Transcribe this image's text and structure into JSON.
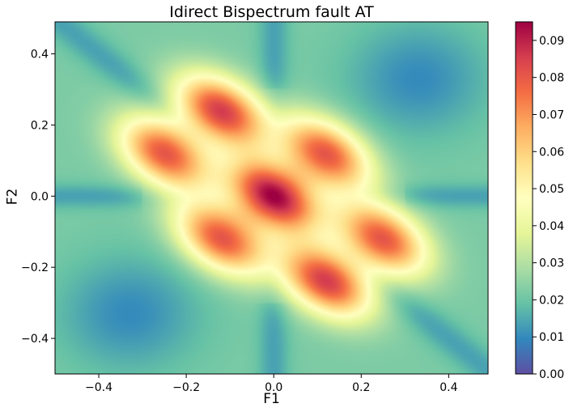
{
  "chart_data": {
    "type": "heatmap",
    "title": "Idirect Bispectrum fault AT",
    "xlabel": "F1",
    "ylabel": "F2",
    "xlim": [
      -0.5,
      0.49
    ],
    "ylim": [
      -0.5,
      0.49
    ],
    "x_ticks": [
      -0.4,
      -0.2,
      0.0,
      0.2,
      0.4
    ],
    "x_tick_labels": [
      "−0.4",
      "−0.2",
      "0.0",
      "0.2",
      "0.4"
    ],
    "y_ticks": [
      -0.4,
      -0.2,
      0.0,
      0.2,
      0.4
    ],
    "y_tick_labels": [
      "−0.4",
      "−0.2",
      "0.0",
      "0.2",
      "0.4"
    ],
    "colormap": "Spectral_r",
    "colorbar": {
      "min": 0.0,
      "max": 0.095,
      "ticks": [
        0.0,
        0.01,
        0.02,
        0.03,
        0.04,
        0.05,
        0.06,
        0.07,
        0.08,
        0.09
      ],
      "tick_labels": [
        "0.00",
        "0.01",
        "0.02",
        "0.03",
        "0.04",
        "0.05",
        "0.06",
        "0.07",
        "0.08",
        "0.09"
      ]
    },
    "peaks": [
      {
        "f1": 0.0,
        "f2": 0.0,
        "value": 0.095
      },
      {
        "f1": -0.12,
        "f2": 0.24,
        "value": 0.085
      },
      {
        "f1": -0.25,
        "f2": 0.12,
        "value": 0.08
      },
      {
        "f1": 0.12,
        "f2": 0.12,
        "value": 0.08
      },
      {
        "f1": -0.12,
        "f2": -0.12,
        "value": 0.08
      },
      {
        "f1": 0.25,
        "f2": -0.12,
        "value": 0.08
      },
      {
        "f1": 0.12,
        "f2": -0.24,
        "value": 0.085
      }
    ],
    "minima": [
      {
        "f1": 0.33,
        "f2": 0.33,
        "value": 0.01
      },
      {
        "f1": -0.33,
        "f2": -0.33,
        "value": 0.01
      }
    ],
    "background_value": 0.022
  },
  "colors": {
    "cmap_stops": [
      "#5e4fa2",
      "#3288bd",
      "#66c2a5",
      "#abdda4",
      "#e6f598",
      "#ffffbf",
      "#fee08b",
      "#fdae61",
      "#f46d43",
      "#d53e4f",
      "#9e0142"
    ]
  }
}
